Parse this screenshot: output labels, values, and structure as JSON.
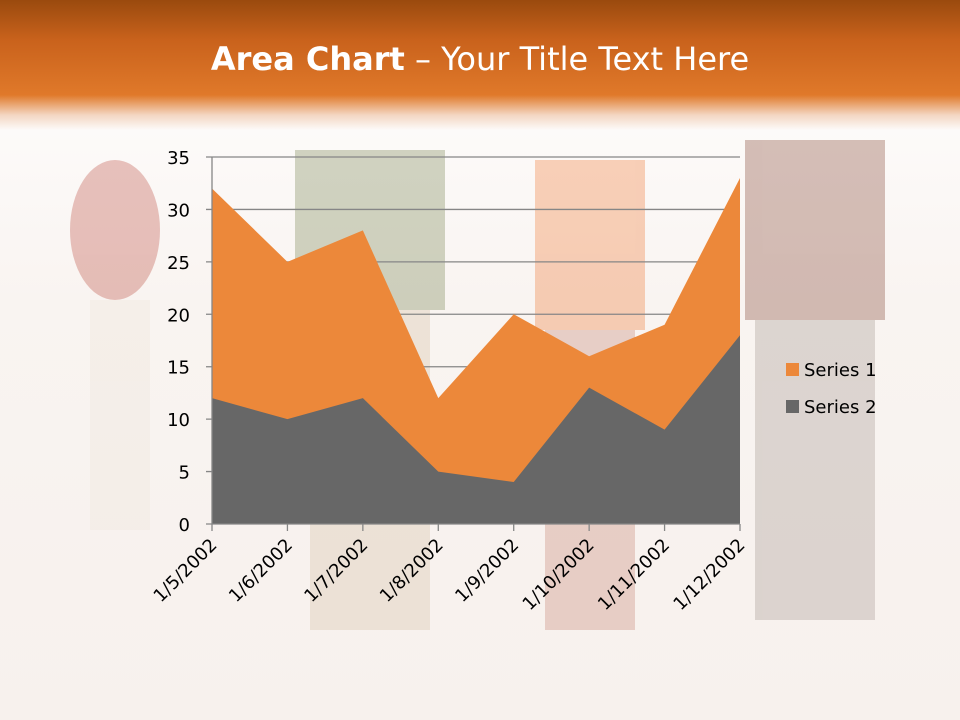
{
  "slide": {
    "title_bold": "Area Chart",
    "title_rest": " – Your Title Text Here"
  },
  "colors": {
    "series1": "#ec883a",
    "series2": "#676767",
    "header": "#e0792a"
  },
  "chart_data": {
    "type": "area",
    "title": "",
    "categories": [
      "1/5/2002",
      "1/6/2002",
      "1/7/2002",
      "1/8/2002",
      "1/9/2002",
      "1/10/2002",
      "1/11/2002",
      "1/12/2002"
    ],
    "series": [
      {
        "name": "Series 1",
        "values": [
          32,
          25,
          28,
          12,
          20,
          16,
          19,
          33
        ]
      },
      {
        "name": "Series 2",
        "values": [
          12,
          10,
          12,
          5,
          4,
          13,
          9,
          18
        ]
      }
    ],
    "ylim": [
      0,
      35
    ],
    "yticks": [
      0,
      5,
      10,
      15,
      20,
      25,
      30,
      35
    ],
    "grid": true,
    "legend": "right"
  }
}
